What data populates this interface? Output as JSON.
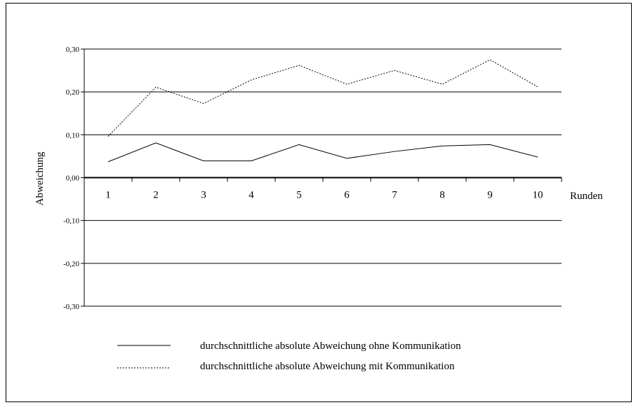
{
  "chart_data": {
    "type": "line",
    "title": "",
    "xlabel": "Runden",
    "ylabel": "Abweichung",
    "categories": [
      "1",
      "2",
      "3",
      "4",
      "5",
      "6",
      "7",
      "8",
      "9",
      "10"
    ],
    "ylim": [
      -0.3,
      0.3
    ],
    "yticks": [
      "0,30",
      "0,20",
      "0,10",
      "0,00",
      "-0,10",
      "-0,20",
      "-0,30"
    ],
    "ytick_values": [
      0.3,
      0.2,
      0.1,
      0.0,
      -0.1,
      -0.2,
      -0.3
    ],
    "grid": true,
    "legend_position": "bottom",
    "series": [
      {
        "name": "durchschnittliche absolute Abweichung ohne Kommunikation",
        "style": "solid",
        "values": [
          0.037,
          0.081,
          0.039,
          0.039,
          0.077,
          0.045,
          0.061,
          0.074,
          0.077,
          0.048
        ]
      },
      {
        "name": "durchschnittliche absolute Abweichung mit Kommunikation",
        "style": "dashed",
        "values": [
          0.096,
          0.211,
          0.173,
          0.228,
          0.262,
          0.218,
          0.25,
          0.218,
          0.275,
          0.212
        ]
      }
    ]
  }
}
